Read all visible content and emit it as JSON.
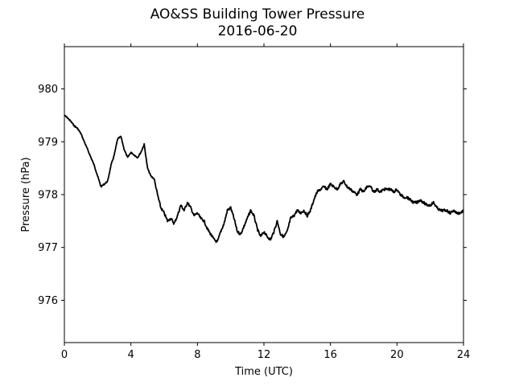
{
  "chart_data": {
    "type": "line",
    "title": "AO&SS Building Tower Pressure",
    "subtitle": "2016-06-20",
    "xlabel": "Time (UTC)",
    "ylabel": "Pressure (hPa)",
    "xlim": [
      0,
      24
    ],
    "ylim": [
      975.2,
      980.8
    ],
    "x_ticks": [
      0,
      4,
      8,
      12,
      16,
      20,
      24
    ],
    "x_tick_labels": [
      "0",
      "4",
      "8",
      "12",
      "16",
      "20",
      "24"
    ],
    "y_ticks": [
      976,
      977,
      978,
      979,
      980
    ],
    "y_tick_labels": [
      "976",
      "977",
      "978",
      "979",
      "980"
    ],
    "grid": false,
    "line_color": "#000000",
    "series": [
      {
        "x": [
          0,
          0.2,
          0.4,
          0.6,
          0.8,
          1.0,
          1.2,
          1.4,
          1.6,
          1.8,
          2.0,
          2.2,
          2.4,
          2.6,
          2.8,
          3.0,
          3.2,
          3.4,
          3.6,
          3.8,
          4.0,
          4.2,
          4.4,
          4.6,
          4.8,
          5.0,
          5.2,
          5.4,
          5.6,
          5.8,
          6.0,
          6.2,
          6.4,
          6.6,
          6.8,
          7.0,
          7.2,
          7.4,
          7.6,
          7.8,
          8.0,
          8.2,
          8.4,
          8.6,
          8.8,
          9.0,
          9.2,
          9.4,
          9.6,
          9.8,
          10.0,
          10.2,
          10.4,
          10.6,
          10.8,
          11.0,
          11.2,
          11.4,
          11.6,
          11.8,
          12.0,
          12.2,
          12.4,
          12.6,
          12.8,
          13.0,
          13.2,
          13.4,
          13.6,
          13.8,
          14.0,
          14.2,
          14.4,
          14.6,
          14.8,
          15.0,
          15.2,
          15.4,
          15.6,
          15.8,
          16.0,
          16.2,
          16.4,
          16.6,
          16.8,
          17.0,
          17.2,
          17.4,
          17.6,
          17.8,
          18.0,
          18.2,
          18.4,
          18.6,
          18.8,
          19.0,
          19.2,
          19.4,
          19.6,
          19.8,
          20.0,
          20.2,
          20.4,
          20.6,
          20.8,
          21.0,
          21.2,
          21.4,
          21.6,
          21.8,
          22.0,
          22.2,
          22.4,
          22.6,
          22.8,
          23.0,
          23.2,
          23.4,
          23.6,
          23.8,
          24.0
        ],
        "y": [
          979.5,
          979.45,
          979.38,
          979.3,
          979.25,
          979.15,
          979.0,
          978.85,
          978.7,
          978.55,
          978.35,
          978.15,
          978.2,
          978.25,
          978.55,
          978.75,
          979.05,
          979.1,
          978.85,
          978.7,
          978.8,
          978.75,
          978.7,
          978.8,
          978.95,
          978.5,
          978.35,
          978.3,
          978.0,
          977.75,
          977.65,
          977.5,
          977.55,
          977.45,
          977.6,
          977.8,
          977.7,
          977.85,
          977.75,
          977.6,
          977.65,
          977.55,
          977.5,
          977.35,
          977.25,
          977.15,
          977.1,
          977.3,
          977.45,
          977.7,
          977.75,
          977.55,
          977.3,
          977.25,
          977.4,
          977.55,
          977.7,
          977.6,
          977.35,
          977.2,
          977.3,
          977.2,
          977.15,
          977.3,
          977.5,
          977.25,
          977.2,
          977.3,
          977.55,
          977.6,
          977.7,
          977.65,
          977.7,
          977.6,
          977.7,
          977.9,
          978.05,
          978.1,
          978.15,
          978.1,
          978.2,
          978.15,
          978.1,
          978.2,
          978.25,
          978.15,
          978.1,
          978.05,
          978.0,
          978.1,
          978.05,
          978.15,
          978.15,
          978.05,
          978.1,
          978.05,
          978.1,
          978.1,
          978.1,
          978.05,
          978.1,
          978.0,
          977.95,
          977.95,
          977.9,
          977.85,
          977.85,
          977.9,
          977.85,
          977.8,
          977.8,
          977.85,
          977.75,
          977.7,
          977.7,
          977.7,
          977.65,
          977.7,
          977.65,
          977.65,
          977.7
        ]
      }
    ]
  }
}
